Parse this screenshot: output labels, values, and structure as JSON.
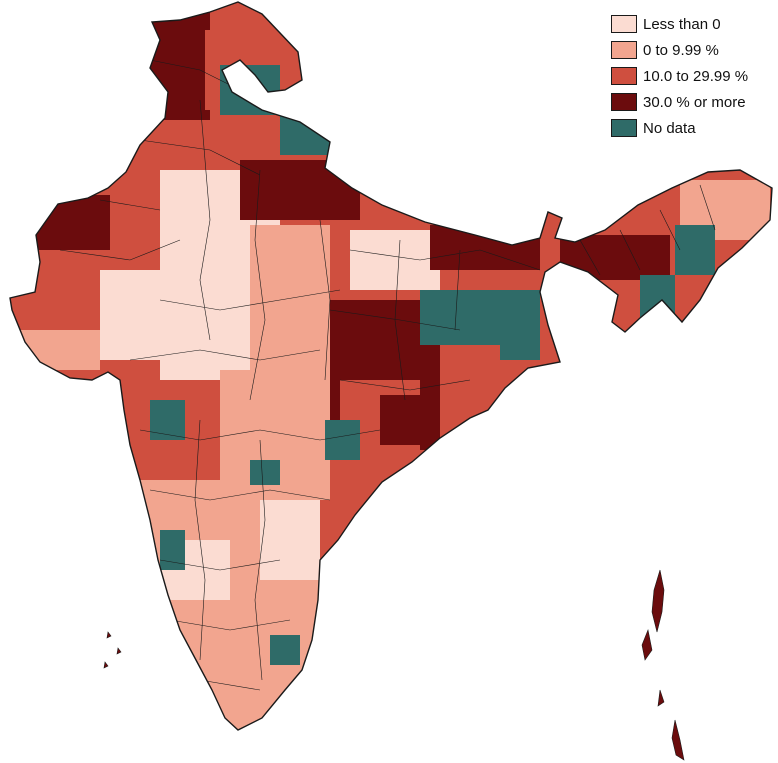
{
  "legend": {
    "items": [
      {
        "label": "Less than 0",
        "color": "#fbdcd2"
      },
      {
        "label": "0 to 9.99 %",
        "color": "#f2a58f"
      },
      {
        "label": "10.0 to 29.99 %",
        "color": "#cf4f3f"
      },
      {
        "label": "30.0 % or more",
        "color": "#6b0c0d"
      },
      {
        "label": "No data",
        "color": "#2f6b68"
      }
    ]
  },
  "map": {
    "border_color": "#1a1a1a"
  }
}
